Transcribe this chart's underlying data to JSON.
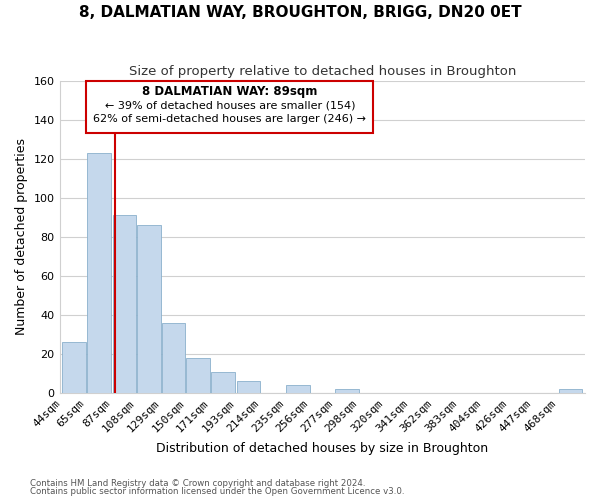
{
  "title": "8, DALMATIAN WAY, BROUGHTON, BRIGG, DN20 0ET",
  "subtitle": "Size of property relative to detached houses in Broughton",
  "xlabel": "Distribution of detached houses by size in Broughton",
  "ylabel": "Number of detached properties",
  "bar_color": "#c5d8ec",
  "bar_edge_color": "#8ab0cc",
  "vline_color": "#cc0000",
  "categories": [
    "44sqm",
    "65sqm",
    "87sqm",
    "108sqm",
    "129sqm",
    "150sqm",
    "171sqm",
    "193sqm",
    "214sqm",
    "235sqm",
    "256sqm",
    "277sqm",
    "298sqm",
    "320sqm",
    "341sqm",
    "362sqm",
    "383sqm",
    "404sqm",
    "426sqm",
    "447sqm",
    "468sqm"
  ],
  "bin_edges": [
    44,
    65,
    87,
    108,
    129,
    150,
    171,
    193,
    214,
    235,
    256,
    277,
    298,
    320,
    341,
    362,
    383,
    404,
    426,
    447,
    468
  ],
  "bin_width": 21,
  "values": [
    26,
    123,
    91,
    86,
    36,
    18,
    11,
    6,
    0,
    4,
    0,
    2,
    0,
    0,
    0,
    0,
    0,
    0,
    0,
    0,
    2
  ],
  "ylim": [
    0,
    160
  ],
  "yticks": [
    0,
    20,
    40,
    60,
    80,
    100,
    120,
    140,
    160
  ],
  "vline_x": 89,
  "annotation_title": "8 DALMATIAN WAY: 89sqm",
  "annotation_line1": "← 39% of detached houses are smaller (154)",
  "annotation_line2": "62% of semi-detached houses are larger (246) →",
  "footnote1": "Contains HM Land Registry data © Crown copyright and database right 2024.",
  "footnote2": "Contains public sector information licensed under the Open Government Licence v3.0.",
  "background_color": "#ffffff",
  "grid_color": "#d0d0d0"
}
